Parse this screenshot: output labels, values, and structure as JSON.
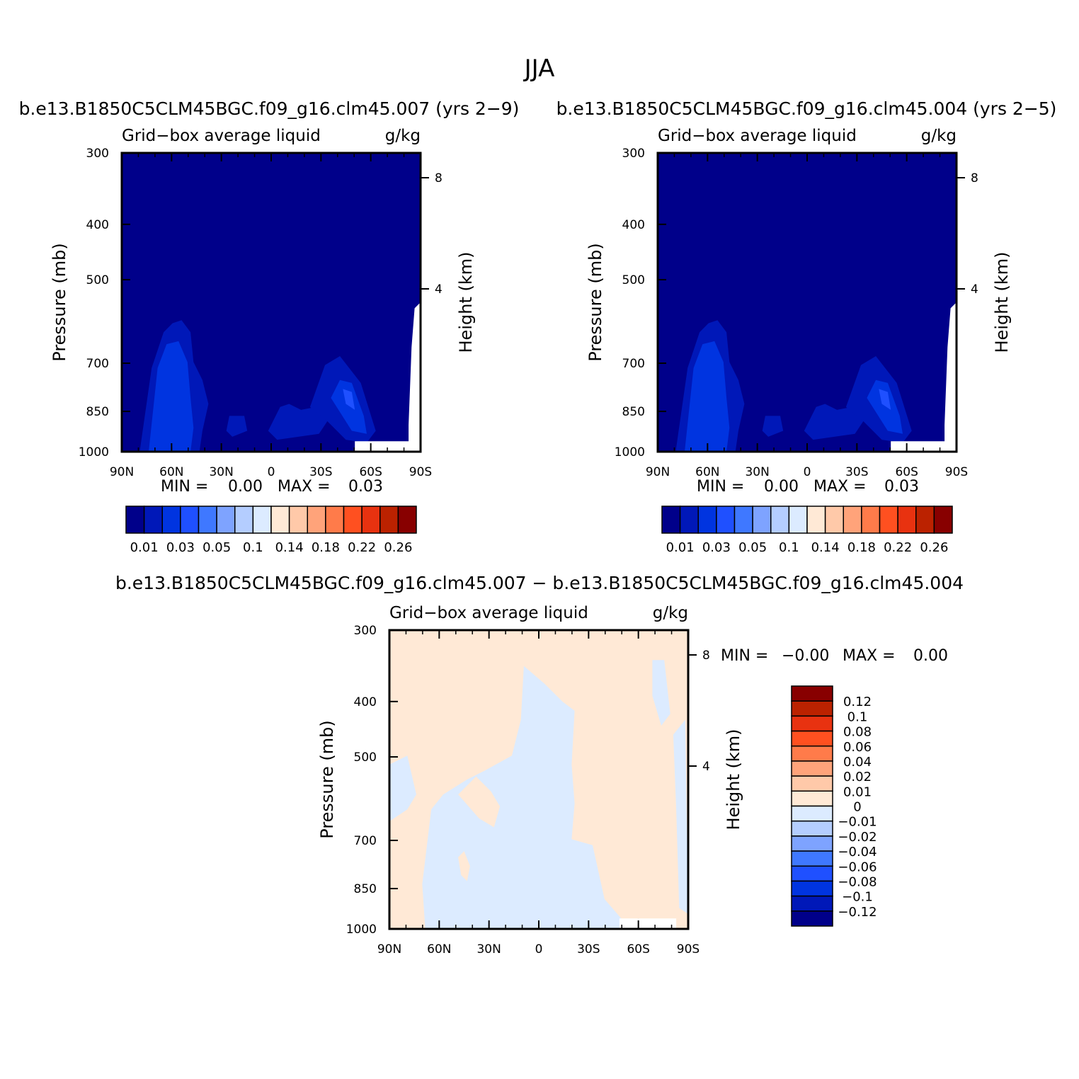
{
  "figure": {
    "title": "JJA"
  },
  "chart_data": [
    {
      "type": "heatmap",
      "title": "b.e13.B1850C5CLM45BGC.f09_g16.clm45.007 (yrs 2−9)",
      "subtitle_left": "Grid−box average liquid",
      "subtitle_right": "g/kg",
      "ylabel": "Pressure (mb)",
      "ylabel_right": "Height (km)",
      "x_ticks": [
        "90N",
        "60N",
        "30N",
        "0",
        "30S",
        "60S",
        "90S"
      ],
      "y_ticks": [
        "300",
        "400",
        "500",
        "700",
        "850",
        "1000"
      ],
      "y_right_ticks": [
        "8",
        "4"
      ],
      "ylim": [
        1000,
        300
      ],
      "min_label": "MIN =",
      "min_value": "0.00",
      "max_label": "MAX =",
      "max_value": "0.03",
      "colorbar": {
        "orientation": "horizontal",
        "labels": [
          "0.01",
          "0.03",
          "0.05",
          "0.1",
          "0.14",
          "0.18",
          "0.22",
          "0.26"
        ],
        "colors": [
          "#00008a",
          "#0018b8",
          "#0034e0",
          "#1f50ff",
          "#3f78ff",
          "#7ea3ff",
          "#b4cdff",
          "#dcebff",
          "#ffe9d6",
          "#ffc9a9",
          "#ffa37a",
          "#ff7b4a",
          "#ff5020",
          "#e83210",
          "#bb2200",
          "#880000"
        ]
      }
    },
    {
      "type": "heatmap",
      "title": "b.e13.B1850C5CLM45BGC.f09_g16.clm45.004 (yrs 2−5)",
      "subtitle_left": "Grid−box average liquid",
      "subtitle_right": "g/kg",
      "ylabel": "Pressure (mb)",
      "ylabel_right": "Height (km)",
      "x_ticks": [
        "90N",
        "60N",
        "30N",
        "0",
        "30S",
        "60S",
        "90S"
      ],
      "y_ticks": [
        "300",
        "400",
        "500",
        "700",
        "850",
        "1000"
      ],
      "y_right_ticks": [
        "8",
        "4"
      ],
      "ylim": [
        1000,
        300
      ],
      "min_label": "MIN =",
      "min_value": "0.00",
      "max_label": "MAX =",
      "max_value": "0.03",
      "colorbar": {
        "orientation": "horizontal",
        "labels": [
          "0.01",
          "0.03",
          "0.05",
          "0.1",
          "0.14",
          "0.18",
          "0.22",
          "0.26"
        ],
        "colors": [
          "#00008a",
          "#0018b8",
          "#0034e0",
          "#1f50ff",
          "#3f78ff",
          "#7ea3ff",
          "#b4cdff",
          "#dcebff",
          "#ffe9d6",
          "#ffc9a9",
          "#ffa37a",
          "#ff7b4a",
          "#ff5020",
          "#e83210",
          "#bb2200",
          "#880000"
        ]
      }
    },
    {
      "type": "heatmap",
      "title": "b.e13.B1850C5CLM45BGC.f09_g16.clm45.007 − b.e13.B1850C5CLM45BGC.f09_g16.clm45.004",
      "subtitle_left": "Grid−box average liquid",
      "subtitle_right": "g/kg",
      "ylabel": "Pressure (mb)",
      "ylabel_right": "Height (km)",
      "x_ticks": [
        "90N",
        "60N",
        "30N",
        "0",
        "30S",
        "60S",
        "90S"
      ],
      "y_ticks": [
        "300",
        "400",
        "500",
        "700",
        "850",
        "1000"
      ],
      "y_right_ticks": [
        "8",
        "4"
      ],
      "ylim": [
        1000,
        300
      ],
      "min_label": "MIN =",
      "min_value": "−0.00",
      "max_label": "MAX =",
      "max_value": "0.00",
      "colorbar": {
        "orientation": "vertical",
        "labels": [
          "0.12",
          "0.1",
          "0.08",
          "0.06",
          "0.04",
          "0.02",
          "0.01",
          "0",
          "−0.01",
          "−0.02",
          "−0.04",
          "−0.06",
          "−0.08",
          "−0.1",
          "−0.12"
        ],
        "colors": [
          "#880000",
          "#bb2200",
          "#e83210",
          "#ff5020",
          "#ff7b4a",
          "#ffa37a",
          "#ffc9a9",
          "#ffe9d6",
          "#dcebff",
          "#b4cdff",
          "#7ea3ff",
          "#3f78ff",
          "#1f50ff",
          "#0034e0",
          "#0018b8",
          "#00008a"
        ]
      }
    }
  ]
}
